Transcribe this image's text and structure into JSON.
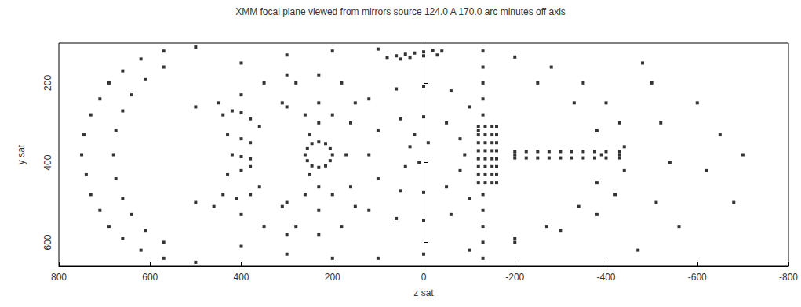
{
  "chart_data": {
    "type": "scatter",
    "title": "XMM focal plane viewed from mirrors source 124.0 A 170.0 arc minutes off axis",
    "x_label": "z sat",
    "y_label": "y sat",
    "xlim": [
      800,
      -800
    ],
    "xticks": [
      800,
      600,
      400,
      200,
      0,
      -200,
      -400,
      -600,
      -800
    ],
    "ylim": [
      100,
      660
    ],
    "yticks": [
      200,
      400,
      600
    ],
    "grid": false,
    "color": "#000000",
    "marker": "square",
    "x": [
      750,
      745,
      740,
      730,
      730,
      710,
      710,
      690,
      690,
      660,
      660,
      620,
      620,
      570,
      570,
      500,
      500,
      680,
      675,
      675,
      660,
      660,
      640,
      640,
      610,
      610,
      570,
      570,
      400,
      300,
      200,
      100,
      400,
      300,
      200,
      100,
      0,
      -100,
      -200,
      -300,
      -380,
      -420,
      -440,
      -440,
      -430,
      -400,
      -350,
      -280,
      -200,
      350,
      300,
      -250,
      -330,
      -380,
      -390,
      -380,
      -340,
      -270,
      350,
      300,
      -200,
      440,
      420,
      400,
      380,
      360,
      430,
      400,
      380,
      420,
      400,
      380,
      430,
      400,
      380,
      440,
      410,
      380,
      360,
      450,
      460,
      500,
      400,
      300,
      250,
      500,
      400,
      300,
      250,
      260,
      255,
      245,
      230,
      215,
      205,
      200,
      205,
      215,
      230,
      245,
      255,
      230,
      230,
      230,
      230,
      230,
      230,
      180,
      200,
      260,
      280,
      280,
      260,
      200,
      180,
      150,
      310,
      310,
      150,
      120,
      100,
      50,
      0,
      -50,
      -80,
      -90,
      -80,
      -50,
      0,
      50,
      100,
      170,
      160,
      120,
      60,
      0,
      -60,
      -100,
      -120,
      -100,
      -60,
      0,
      60,
      120,
      160,
      30,
      10,
      40,
      -10,
      20,
      -130,
      -130,
      -130,
      -130,
      -130,
      -130,
      -130,
      -130,
      -130,
      -130,
      -120,
      -120,
      -120,
      -120,
      -120,
      -120,
      -120,
      -120,
      -135,
      -135,
      -135,
      -135,
      -135,
      -135,
      -135,
      -135,
      -150,
      -150,
      -150,
      -150,
      -150,
      -150,
      -150,
      -150,
      -160,
      -160,
      -160,
      -160,
      -160,
      -160,
      -160,
      -160,
      -40,
      -20,
      0,
      20,
      40,
      60,
      80,
      -30,
      0,
      30,
      50,
      -200,
      -225,
      -250,
      -275,
      -300,
      -325,
      -350,
      -375,
      -400,
      -430,
      -200,
      -225,
      -250,
      -275,
      -300,
      -325,
      -350,
      -375,
      -400,
      -430,
      -200,
      -430,
      -500,
      -520,
      -540,
      -510,
      -560,
      -600,
      -620,
      -650,
      -680,
      -700,
      -480,
      -470
    ],
    "values": [
      380,
      330,
      430,
      280,
      480,
      240,
      520,
      200,
      560,
      170,
      590,
      140,
      620,
      120,
      640,
      110,
      650,
      380,
      320,
      440,
      270,
      490,
      230,
      530,
      190,
      570,
      160,
      600,
      150,
      130,
      120,
      115,
      610,
      630,
      640,
      640,
      630,
      620,
      600,
      570,
      530,
      480,
      420,
      360,
      300,
      250,
      200,
      160,
      135,
      200,
      180,
      200,
      250,
      320,
      380,
      450,
      510,
      560,
      560,
      580,
      590,
      280,
      270,
      275,
      290,
      310,
      330,
      340,
      350,
      380,
      385,
      390,
      430,
      420,
      410,
      480,
      490,
      480,
      460,
      250,
      510,
      260,
      230,
      260,
      330,
      500,
      530,
      500,
      430,
      380,
      365,
      352,
      348,
      352,
      365,
      380,
      395,
      408,
      412,
      408,
      395,
      180,
      250,
      300,
      460,
      520,
      580,
      200,
      280,
      480,
      560,
      200,
      280,
      480,
      560,
      250,
      510,
      250,
      510,
      380,
      320,
      290,
      285,
      300,
      340,
      380,
      420,
      460,
      475,
      470,
      440,
      380,
      300,
      240,
      215,
      210,
      220,
      260,
      320,
      490,
      530,
      545,
      540,
      520,
      460,
      360,
      400,
      410,
      350,
      330,
      120,
      160,
      200,
      240,
      280,
      480,
      520,
      560,
      600,
      640,
      310,
      330,
      350,
      370,
      390,
      410,
      430,
      450,
      310,
      330,
      350,
      370,
      390,
      410,
      430,
      450,
      310,
      330,
      350,
      370,
      390,
      410,
      430,
      450,
      310,
      330,
      350,
      370,
      390,
      410,
      430,
      450,
      120,
      118,
      122,
      125,
      128,
      132,
      136,
      130,
      132,
      136,
      140,
      372,
      372,
      372,
      372,
      372,
      372,
      372,
      372,
      372,
      372,
      388,
      388,
      388,
      388,
      388,
      388,
      388,
      388,
      388,
      388,
      380,
      380,
      200,
      300,
      400,
      500,
      560,
      250,
      420,
      330,
      500,
      380,
      150,
      620
    ]
  }
}
